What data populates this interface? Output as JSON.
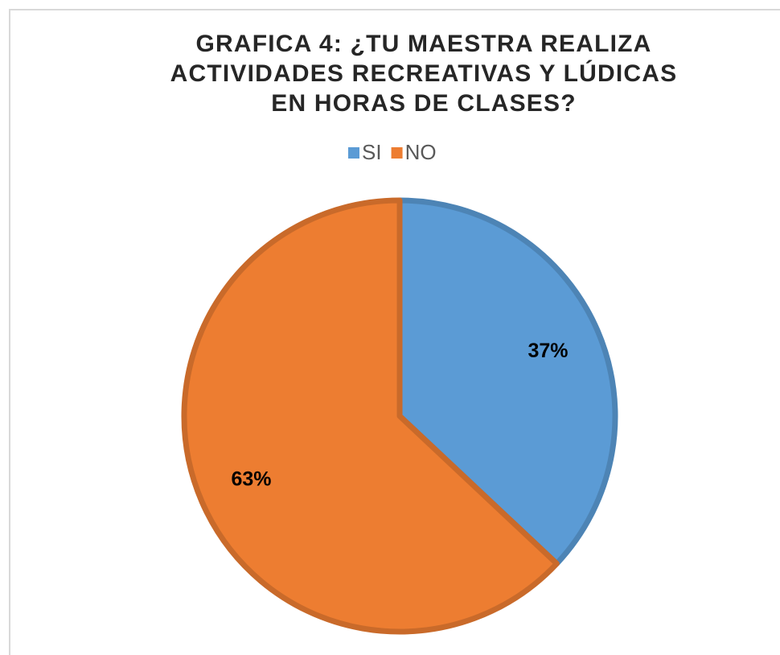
{
  "chart_data": {
    "type": "pie",
    "title": "GRAFICA 4: ¿TU MAESTRA REALIZA ACTIVIDADES RECREATIVAS Y LÚDICAS EN HORAS DE CLASES?",
    "categories": [
      "SI",
      "NO"
    ],
    "values": [
      37,
      63
    ],
    "value_labels": [
      "37%",
      "63%"
    ],
    "colors": [
      "#5b9bd5",
      "#ed7d31"
    ],
    "legend": "top"
  }
}
